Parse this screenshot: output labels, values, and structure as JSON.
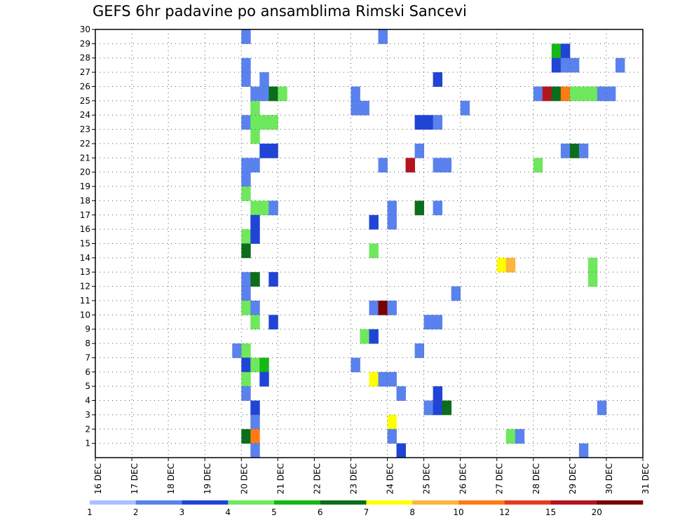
{
  "chart_data": {
    "type": "heatmap",
    "title": "GEFS 6hr padavine po ansamblima Rimski Sancevi",
    "x_tick_labels": [
      "16 DEC",
      "17 DEC",
      "18 DEC",
      "19 DEC",
      "20 DEC",
      "21 DEC",
      "22 DEC",
      "23 DEC",
      "24 DEC",
      "25 DEC",
      "26 DEC",
      "27 DEC",
      "28 DEC",
      "29 DEC",
      "30 DEC",
      "31 DEC"
    ],
    "y_tick_labels": [
      "1",
      "2",
      "3",
      "4",
      "5",
      "6",
      "7",
      "8",
      "9",
      "10",
      "11",
      "12",
      "13",
      "14",
      "15",
      "16",
      "17",
      "18",
      "19",
      "20",
      "21",
      "22",
      "23",
      "24",
      "25",
      "26",
      "27",
      "28",
      "29",
      "30"
    ],
    "xlim": [
      0,
      60
    ],
    "ylim": [
      0,
      30
    ],
    "grid": true,
    "legend": {
      "placement": "bottom",
      "labels": [
        "1",
        "2",
        "3",
        "4",
        "5",
        "6",
        "7",
        "8",
        "10",
        "12",
        "15",
        "20"
      ],
      "colors": [
        "#a8c2ff",
        "#5a82ee",
        "#1f44d6",
        "#6ee85c",
        "#14b814",
        "#0a6e1a",
        "#ffff00",
        "#ffb43c",
        "#ff7a14",
        "#e43c1e",
        "#b4141e",
        "#780000"
      ]
    },
    "cells": [
      [
        16,
        29,
        1
      ],
      [
        31,
        29,
        1
      ],
      [
        50,
        28,
        4
      ],
      [
        51,
        28,
        2
      ],
      [
        16,
        27,
        1
      ],
      [
        50,
        27,
        2
      ],
      [
        51,
        27,
        1
      ],
      [
        52,
        27,
        1
      ],
      [
        57,
        27,
        1
      ],
      [
        16,
        26,
        1
      ],
      [
        18,
        26,
        1
      ],
      [
        37,
        26,
        2
      ],
      [
        17,
        25,
        1
      ],
      [
        18,
        25,
        1
      ],
      [
        19,
        25,
        5
      ],
      [
        20,
        25,
        3
      ],
      [
        28,
        25,
        1
      ],
      [
        48,
        25,
        1
      ],
      [
        49,
        25,
        10
      ],
      [
        50,
        25,
        5
      ],
      [
        51,
        25,
        8
      ],
      [
        52,
        25,
        3
      ],
      [
        53,
        25,
        3
      ],
      [
        54,
        25,
        3
      ],
      [
        55,
        25,
        1
      ],
      [
        56,
        25,
        1
      ],
      [
        17,
        24,
        3
      ],
      [
        28,
        24,
        1
      ],
      [
        29,
        24,
        1
      ],
      [
        40,
        24,
        1
      ],
      [
        16,
        23,
        1
      ],
      [
        17,
        23,
        3
      ],
      [
        18,
        23,
        3
      ],
      [
        19,
        23,
        3
      ],
      [
        35,
        23,
        2
      ],
      [
        36,
        23,
        2
      ],
      [
        37,
        23,
        1
      ],
      [
        17,
        22,
        3
      ],
      [
        18,
        21,
        2
      ],
      [
        19,
        21,
        2
      ],
      [
        35,
        21,
        1
      ],
      [
        51,
        21,
        1
      ],
      [
        52,
        21,
        5
      ],
      [
        53,
        21,
        1
      ],
      [
        16,
        20,
        1
      ],
      [
        17,
        20,
        1
      ],
      [
        31,
        20,
        1
      ],
      [
        34,
        20,
        10
      ],
      [
        37,
        20,
        1
      ],
      [
        38,
        20,
        1
      ],
      [
        48,
        20,
        3
      ],
      [
        16,
        19,
        1
      ],
      [
        16,
        18,
        3
      ],
      [
        17,
        17,
        3
      ],
      [
        18,
        17,
        3
      ],
      [
        19,
        17,
        1
      ],
      [
        32,
        17,
        1
      ],
      [
        35,
        17,
        5
      ],
      [
        37,
        17,
        1
      ],
      [
        17,
        16,
        2
      ],
      [
        30,
        16,
        2
      ],
      [
        32,
        16,
        1
      ],
      [
        16,
        15,
        3
      ],
      [
        17,
        15,
        2
      ],
      [
        16,
        14,
        5
      ],
      [
        30,
        14,
        3
      ],
      [
        44,
        13,
        6
      ],
      [
        45,
        13,
        7
      ],
      [
        54,
        13,
        3
      ],
      [
        16,
        12,
        1
      ],
      [
        17,
        12,
        5
      ],
      [
        19,
        12,
        2
      ],
      [
        54,
        12,
        3
      ],
      [
        16,
        11,
        1
      ],
      [
        39,
        11,
        1
      ],
      [
        16,
        10,
        3
      ],
      [
        17,
        10,
        1
      ],
      [
        30,
        10,
        1
      ],
      [
        31,
        10,
        11
      ],
      [
        32,
        10,
        1
      ],
      [
        17,
        9,
        3
      ],
      [
        19,
        9,
        2
      ],
      [
        36,
        9,
        1
      ],
      [
        37,
        9,
        1
      ],
      [
        29,
        8,
        3
      ],
      [
        30,
        8,
        2
      ],
      [
        15,
        7,
        1
      ],
      [
        16,
        7,
        3
      ],
      [
        35,
        7,
        1
      ],
      [
        16,
        6,
        2
      ],
      [
        17,
        6,
        3
      ],
      [
        18,
        6,
        4
      ],
      [
        28,
        6,
        1
      ],
      [
        16,
        5,
        3
      ],
      [
        18,
        5,
        2
      ],
      [
        30,
        5,
        6
      ],
      [
        31,
        5,
        1
      ],
      [
        32,
        5,
        1
      ],
      [
        16,
        4,
        1
      ],
      [
        33,
        4,
        1
      ],
      [
        37,
        4,
        2
      ],
      [
        17,
        3,
        2
      ],
      [
        36,
        3,
        1
      ],
      [
        37,
        3,
        2
      ],
      [
        38,
        3,
        5
      ],
      [
        55,
        3,
        1
      ],
      [
        17,
        2,
        1
      ],
      [
        32,
        2,
        6
      ],
      [
        16,
        1,
        5
      ],
      [
        17,
        1,
        8
      ],
      [
        32,
        1,
        1
      ],
      [
        45,
        1,
        3
      ],
      [
        46,
        1,
        1
      ],
      [
        17,
        0,
        1
      ],
      [
        33,
        0,
        2
      ],
      [
        53,
        0,
        1
      ]
    ]
  }
}
